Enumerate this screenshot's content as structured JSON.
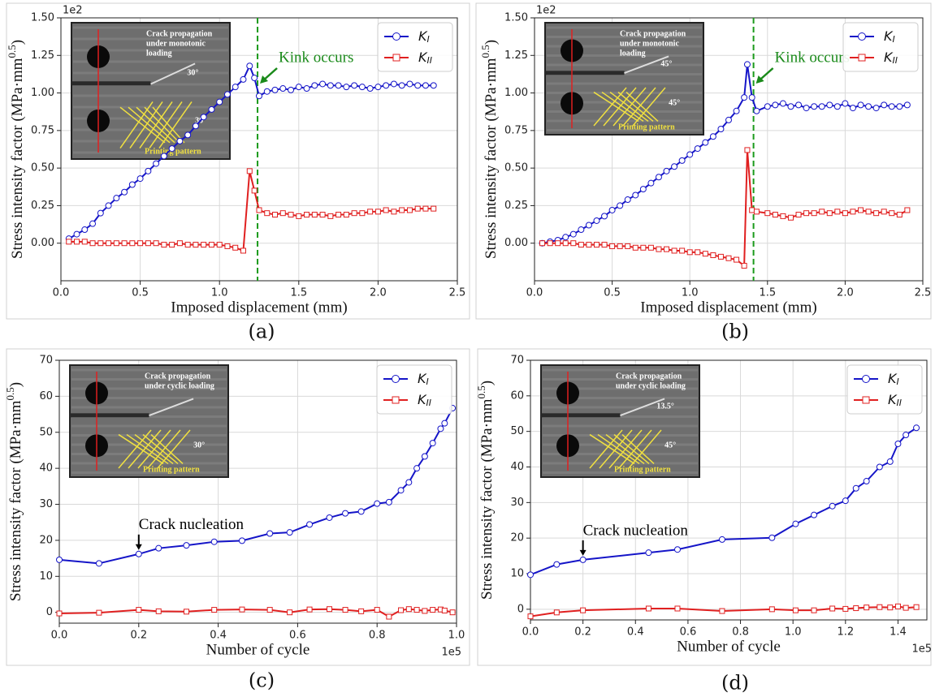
{
  "chart_data": [
    {
      "type": "line",
      "panel_label": "(a)",
      "x": [
        0.05,
        0.1,
        0.15,
        0.2,
        0.25,
        0.3,
        0.35,
        0.4,
        0.45,
        0.5,
        0.55,
        0.6,
        0.65,
        0.7,
        0.75,
        0.8,
        0.85,
        0.9,
        0.95,
        1.0,
        1.05,
        1.1,
        1.15,
        1.19,
        1.22,
        1.25,
        1.3,
        1.35,
        1.4,
        1.45,
        1.5,
        1.55,
        1.6,
        1.65,
        1.7,
        1.75,
        1.8,
        1.85,
        1.9,
        1.95,
        2.0,
        2.05,
        2.1,
        2.15,
        2.2,
        2.25,
        2.3,
        2.35
      ],
      "series": [
        {
          "name": "KI",
          "color": "#1515c8",
          "marker": "circle",
          "values": [
            0.03,
            0.06,
            0.09,
            0.13,
            0.2,
            0.25,
            0.3,
            0.34,
            0.39,
            0.43,
            0.48,
            0.53,
            0.58,
            0.63,
            0.68,
            0.72,
            0.78,
            0.84,
            0.89,
            0.94,
            0.99,
            1.04,
            1.09,
            1.18,
            1.1,
            0.98,
            1.01,
            1.02,
            1.03,
            1.02,
            1.04,
            1.03,
            1.05,
            1.06,
            1.05,
            1.05,
            1.04,
            1.05,
            1.04,
            1.03,
            1.04,
            1.05,
            1.06,
            1.05,
            1.06,
            1.05,
            1.05,
            1.05
          ]
        },
        {
          "name": "KII",
          "color": "#e02020",
          "marker": "square",
          "values": [
            0.01,
            0.01,
            0.01,
            0.0,
            0.0,
            0.0,
            0.0,
            0.0,
            0.0,
            0.0,
            0.0,
            0.0,
            -0.01,
            -0.01,
            0.0,
            -0.01,
            -0.01,
            -0.01,
            -0.01,
            -0.01,
            -0.02,
            -0.03,
            -0.05,
            0.48,
            0.35,
            0.22,
            0.2,
            0.19,
            0.2,
            0.19,
            0.18,
            0.19,
            0.19,
            0.19,
            0.18,
            0.19,
            0.19,
            0.2,
            0.2,
            0.21,
            0.21,
            0.22,
            0.21,
            0.22,
            0.22,
            0.23,
            0.23,
            0.23
          ]
        }
      ],
      "xlim": [
        0,
        2.5
      ],
      "ylim": [
        -0.25,
        1.5
      ],
      "xticks": [
        {
          "value": 0,
          "label": "0.0"
        },
        0.5,
        {
          "value": 1,
          "label": "1.0"
        },
        1.5,
        {
          "value": 2,
          "label": "2.0"
        },
        2.5
      ],
      "yticks": [
        {
          "value": 0,
          "label": "0.00"
        },
        0.25,
        {
          "value": 0.5,
          "label": "0.50"
        },
        0.75,
        {
          "value": 1,
          "label": "1.00"
        },
        1.25,
        {
          "value": 1.5,
          "label": "1.50"
        }
      ],
      "y_offset": "1e2",
      "x_label": "Imposed displacement (mm)",
      "y_label": [
        "Stress intensity factor (MPa·mm",
        "0.5",
        ")"
      ],
      "grid": true,
      "legend": "upper right",
      "vline": 1.24,
      "annotation": {
        "text": "Kink occurs",
        "color": "#1a8a1a"
      },
      "inset": {
        "caption": [
          "Crack propagation",
          "under monotonic",
          "loading"
        ],
        "angles": [
          "30°",
          "30°"
        ],
        "pattern": "Printing pattern"
      }
    },
    {
      "type": "line",
      "panel_label": "(b)",
      "x": [
        0.05,
        0.1,
        0.15,
        0.2,
        0.25,
        0.3,
        0.35,
        0.4,
        0.45,
        0.5,
        0.55,
        0.6,
        0.65,
        0.7,
        0.75,
        0.8,
        0.85,
        0.9,
        0.95,
        1.0,
        1.05,
        1.1,
        1.15,
        1.2,
        1.25,
        1.3,
        1.35,
        1.37,
        1.4,
        1.43,
        1.5,
        1.55,
        1.6,
        1.65,
        1.7,
        1.75,
        1.8,
        1.85,
        1.9,
        1.95,
        2.0,
        2.05,
        2.1,
        2.15,
        2.2,
        2.25,
        2.3,
        2.35,
        2.4
      ],
      "series": [
        {
          "name": "KI",
          "color": "#1515c8",
          "marker": "circle",
          "values": [
            0.0,
            0.01,
            0.02,
            0.04,
            0.06,
            0.09,
            0.12,
            0.15,
            0.18,
            0.22,
            0.25,
            0.29,
            0.32,
            0.36,
            0.4,
            0.44,
            0.48,
            0.51,
            0.55,
            0.59,
            0.63,
            0.67,
            0.71,
            0.76,
            0.82,
            0.88,
            0.97,
            1.19,
            0.97,
            0.88,
            0.91,
            0.92,
            0.93,
            0.91,
            0.92,
            0.9,
            0.91,
            0.91,
            0.92,
            0.91,
            0.93,
            0.9,
            0.92,
            0.91,
            0.9,
            0.92,
            0.91,
            0.91,
            0.92
          ]
        },
        {
          "name": "KII",
          "color": "#e02020",
          "marker": "square",
          "values": [
            0.0,
            0.0,
            0.0,
            0.0,
            0.0,
            -0.01,
            -0.01,
            -0.01,
            -0.01,
            -0.02,
            -0.02,
            -0.02,
            -0.03,
            -0.03,
            -0.03,
            -0.04,
            -0.04,
            -0.05,
            -0.05,
            -0.06,
            -0.06,
            -0.07,
            -0.08,
            -0.09,
            -0.1,
            -0.11,
            -0.15,
            0.62,
            0.22,
            0.21,
            0.2,
            0.19,
            0.18,
            0.17,
            0.19,
            0.2,
            0.2,
            0.21,
            0.2,
            0.21,
            0.2,
            0.21,
            0.22,
            0.21,
            0.2,
            0.21,
            0.2,
            0.19,
            0.22
          ]
        }
      ],
      "xlim": [
        0,
        2.5
      ],
      "ylim": [
        -0.25,
        1.5
      ],
      "xticks": [
        {
          "value": 0,
          "label": "0.0"
        },
        0.5,
        {
          "value": 1,
          "label": "1.0"
        },
        1.5,
        {
          "value": 2,
          "label": "2.0"
        },
        2.5
      ],
      "yticks": [
        {
          "value": 0,
          "label": "0.00"
        },
        0.25,
        {
          "value": 0.5,
          "label": "0.50"
        },
        0.75,
        {
          "value": 1,
          "label": "1.00"
        },
        1.25,
        {
          "value": 1.5,
          "label": "1.50"
        }
      ],
      "y_offset": "1e2",
      "x_label": "Imposed displacement (mm)",
      "y_label": [
        "Stress intensity factor (MPa·mm",
        "0.5",
        ")"
      ],
      "grid": true,
      "legend": "upper right",
      "vline": 1.41,
      "annotation": {
        "text": "Kink occurs",
        "color": "#1a8a1a"
      },
      "inset": {
        "caption": [
          "Crack propagation",
          "under monotonic",
          "loading"
        ],
        "angles": [
          "45°",
          "45°"
        ],
        "pattern": "Printing pattern"
      }
    },
    {
      "type": "line",
      "panel_label": "(c)",
      "x": [
        0,
        0.1,
        0.2,
        0.25,
        0.32,
        0.39,
        0.46,
        0.53,
        0.58,
        0.63,
        0.68,
        0.72,
        0.76,
        0.8,
        0.83,
        0.86,
        0.88,
        0.9,
        0.92,
        0.94,
        0.96,
        0.97,
        0.99
      ],
      "series": [
        {
          "name": "KI",
          "color": "#1515c8",
          "marker": "circle",
          "values": [
            14.6,
            13.6,
            16.2,
            17.8,
            18.6,
            19.6,
            19.9,
            21.9,
            22.2,
            24.4,
            26.3,
            27.5,
            28.0,
            30.2,
            30.6,
            33.9,
            36.1,
            40.0,
            43.3,
            47.0,
            51.0,
            52.5,
            56.7
          ]
        },
        {
          "name": "KII",
          "color": "#e02020",
          "marker": "square",
          "values": [
            -0.3,
            -0.1,
            0.7,
            0.3,
            0.2,
            0.7,
            0.8,
            0.7,
            0.0,
            0.8,
            0.9,
            0.7,
            0.3,
            0.7,
            -1.2,
            0.6,
            0.9,
            0.7,
            0.4,
            0.7,
            0.8,
            0.5,
            0.0
          ]
        }
      ],
      "xlim": [
        0,
        1.0
      ],
      "ylim": [
        -3,
        70
      ],
      "xticks": [
        {
          "value": 0,
          "label": "0.0"
        },
        0.2,
        0.4,
        0.6,
        0.8,
        {
          "value": 1,
          "label": "1.0"
        }
      ],
      "yticks": [
        0,
        10,
        20,
        30,
        40,
        50,
        60,
        70
      ],
      "x_offset": "1e5",
      "x_label": "Number of cycle",
      "y_label": [
        "Stress intensity factor (MPa·mm",
        "0.5",
        ")"
      ],
      "grid": true,
      "legend": "upper right",
      "annotation": {
        "text": "Crack nucleation",
        "color": "#000000",
        "x": 0.2
      },
      "inset": {
        "caption": [
          "Crack propagation",
          "under cyclic loading"
        ],
        "angles": [
          "30°"
        ],
        "pattern": "Printing pattern"
      }
    },
    {
      "type": "line",
      "panel_label": "(d)",
      "x": [
        0,
        0.1,
        0.2,
        0.45,
        0.56,
        0.73,
        0.92,
        1.01,
        1.08,
        1.15,
        1.2,
        1.24,
        1.28,
        1.33,
        1.37,
        1.4,
        1.43,
        1.47
      ],
      "series": [
        {
          "name": "KI",
          "color": "#1515c8",
          "marker": "circle",
          "values": [
            9.7,
            12.6,
            13.9,
            15.9,
            16.8,
            19.6,
            20.1,
            24,
            26.5,
            29,
            30.5,
            34,
            36,
            40,
            41.5,
            46.5,
            49,
            51
          ]
        },
        {
          "name": "KII",
          "color": "#e02020",
          "marker": "square",
          "values": [
            -2,
            -0.9,
            -0.3,
            0.2,
            0.2,
            -0.5,
            0,
            -0.3,
            -0.3,
            0.2,
            0.1,
            0.3,
            0.5,
            0.6,
            0.5,
            0.8,
            0.4,
            0.6
          ]
        }
      ],
      "xlim": [
        0,
        1.51
      ],
      "ylim": [
        -3,
        70
      ],
      "xticks": [
        {
          "value": 0,
          "label": "0.0"
        },
        0.2,
        0.4,
        0.6,
        0.8,
        {
          "value": 1,
          "label": "1.0"
        },
        1.2,
        1.4
      ],
      "yticks": [
        0,
        10,
        20,
        30,
        40,
        50,
        60,
        70
      ],
      "x_offset": "1e5",
      "x_label": "Number of cycle",
      "y_label": [
        "Stress intensity factor (MPa·mm",
        "0.5",
        ")"
      ],
      "grid": true,
      "legend": "upper right",
      "annotation": {
        "text": "Crack nucleation",
        "color": "#000000",
        "x": 0.2
      },
      "inset": {
        "caption": [
          "Crack propagation",
          "under cyclic loading"
        ],
        "angles": [
          "13.5°",
          "45°"
        ],
        "pattern": "Printing pattern"
      }
    }
  ]
}
